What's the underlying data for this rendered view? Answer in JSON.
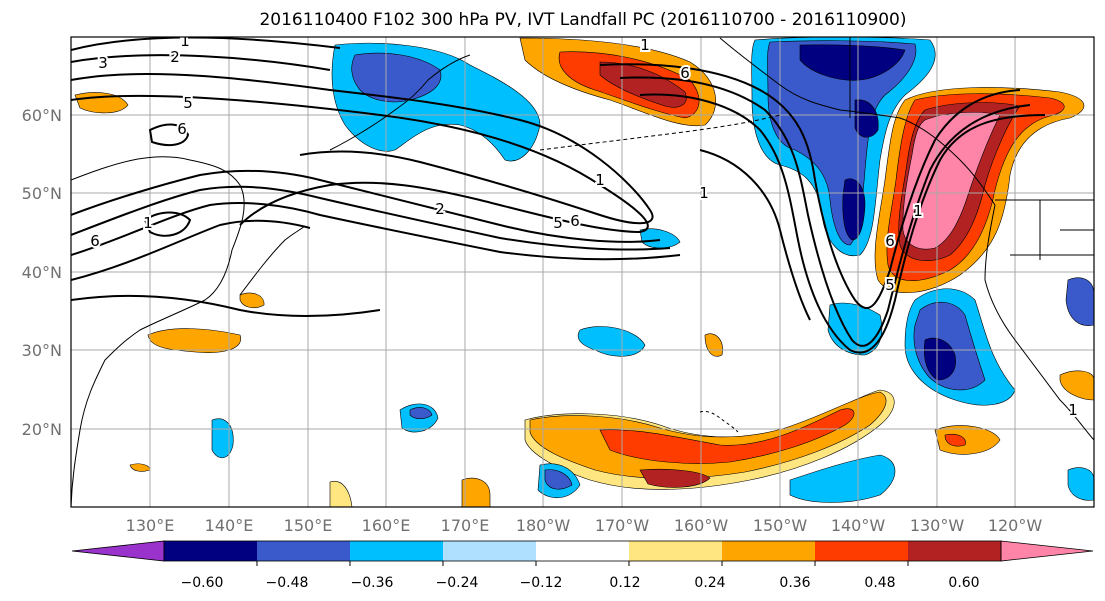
{
  "title": "2016110400 F102 300 hPa PV, IVT Landfall PC (2016110700 - 2016110900)",
  "lat_labels": [
    "60°N",
    "50°N",
    "40°N",
    "30°N",
    "20°N"
  ],
  "lon_labels": [
    "130°E",
    "140°E",
    "150°E",
    "160°E",
    "170°E",
    "180°W",
    "170°W",
    "160°W",
    "150°W",
    "140°W",
    "130°W",
    "120°W"
  ],
  "colorbar": {
    "ticks": [
      "−0.60",
      "−0.48",
      "−0.36",
      "−0.24",
      "−0.12",
      "0.12",
      "0.24",
      "0.36",
      "0.48",
      "0.60"
    ],
    "colors": [
      "#9933cc",
      "#000080",
      "#3a5acc",
      "#00bfff",
      "#b0e0ff",
      "#ffffff",
      "#ffe680",
      "#ffa500",
      "#ff3c00",
      "#b22222",
      "#ff85a8"
    ]
  },
  "contour_labels": [
    "1",
    "2",
    "3",
    "5",
    "6",
    "6",
    "1",
    "2",
    "5",
    "6",
    "1",
    "6",
    "1",
    "1",
    "6",
    "5",
    "1",
    "1"
  ],
  "map": {
    "projection": "cylindrical",
    "lon_range": "120°E to 110°W",
    "lat_range": "10°N to 70°N",
    "gridlines": true,
    "pv_contour_color": "#000000"
  }
}
